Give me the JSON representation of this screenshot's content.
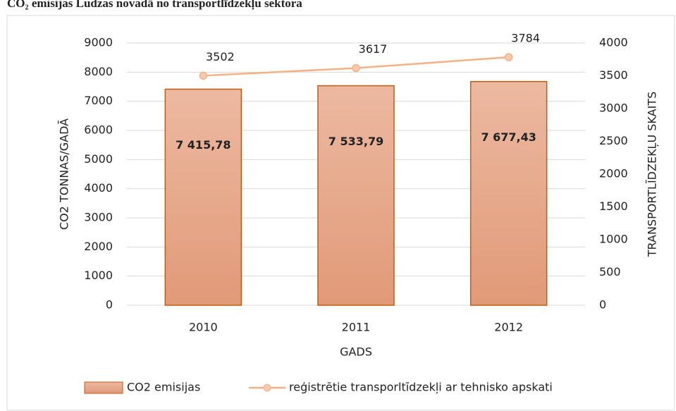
{
  "chart_data": {
    "type": "bar_line",
    "title": "CO₂ emisijas Ludzas novadā no transportlīdzekļu sektora",
    "x_label": "GADS",
    "y_label": "CO2 TONNAS/GADĀ",
    "y2_label": "TRANSPORTLĪDZEKĻU SKAITS",
    "categories": [
      "2010",
      "2011",
      "2012"
    ],
    "series": [
      {
        "name": "CO2 emisijas",
        "type": "bar",
        "color": "#e5a584",
        "values": [
          7415.78,
          7533.79,
          7677.43
        ],
        "value_labels": [
          "7 415,78",
          "7 533,79",
          "7 677,43"
        ]
      },
      {
        "name": "reģistrētie transporltīdzekļi ar tehnisko apskati",
        "type": "line",
        "axis": "y2",
        "color": "#f4b183",
        "values": [
          3502,
          3617,
          3784
        ]
      }
    ],
    "ylim": [
      0,
      9000
    ],
    "yticks": [
      0,
      1000,
      2000,
      3000,
      4000,
      5000,
      6000,
      7000,
      8000,
      9000
    ],
    "y2lim": [
      0,
      4000
    ],
    "y2ticks": [
      0,
      500,
      1000,
      1500,
      2000,
      2500,
      3000,
      3500,
      4000
    ],
    "grid": true,
    "legend": "bottom"
  }
}
